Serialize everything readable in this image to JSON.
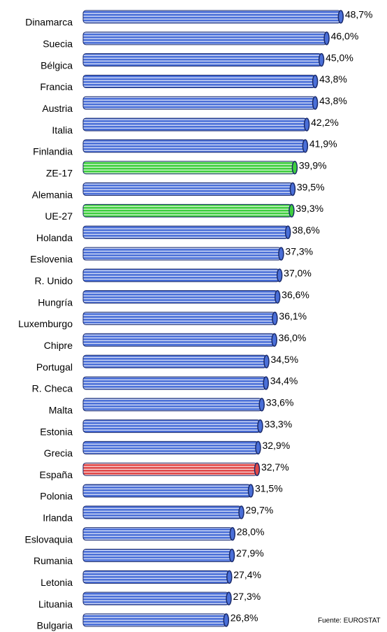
{
  "chart_data": {
    "type": "bar",
    "orientation": "horizontal",
    "categories": [
      "Dinamarca",
      "Suecia",
      "Bélgica",
      "Francia",
      "Austria",
      "Italia",
      "Finlandia",
      "ZE-17",
      "Alemania",
      "UE-27",
      "Holanda",
      "Eslovenia",
      "R. Unido",
      "Hungría",
      "Luxemburgo",
      "Chipre",
      "Portugal",
      "R. Checa",
      "Malta",
      "Estonia",
      "Grecia",
      "España",
      "Polonia",
      "Irlanda",
      "Eslovaquia",
      "Rumania",
      "Letonia",
      "Lituania",
      "Bulgaria"
    ],
    "values": [
      48.7,
      46.0,
      45.0,
      43.8,
      43.8,
      42.2,
      41.9,
      39.9,
      39.5,
      39.3,
      38.6,
      37.3,
      37.0,
      36.6,
      36.1,
      36.0,
      34.5,
      34.4,
      33.6,
      33.3,
      32.9,
      32.7,
      31.5,
      29.7,
      28.0,
      27.9,
      27.4,
      27.3,
      26.8
    ],
    "value_labels": [
      "48,7%",
      "46,0%",
      "45,0%",
      "43,8%",
      "43,8%",
      "42,2%",
      "41,9%",
      "39,9%",
      "39,5%",
      "39,3%",
      "38,6%",
      "37,3%",
      "37,0%",
      "36,6%",
      "36,1%",
      "36,0%",
      "34,5%",
      "34,4%",
      "33,6%",
      "33,3%",
      "32,9%",
      "32,7%",
      "31,5%",
      "29,7%",
      "28,0%",
      "27,9%",
      "27,4%",
      "27,3%",
      "26,8%"
    ],
    "colors": [
      "#4a6fd8",
      "#4a6fd8",
      "#4a6fd8",
      "#4a6fd8",
      "#4a6fd8",
      "#4a6fd8",
      "#4a6fd8",
      "#3fcf3f",
      "#4a6fd8",
      "#3fcf3f",
      "#4a6fd8",
      "#4a6fd8",
      "#4a6fd8",
      "#4a6fd8",
      "#4a6fd8",
      "#4a6fd8",
      "#4a6fd8",
      "#4a6fd8",
      "#4a6fd8",
      "#4a6fd8",
      "#4a6fd8",
      "#e04848",
      "#4a6fd8",
      "#4a6fd8",
      "#4a6fd8",
      "#4a6fd8",
      "#4a6fd8",
      "#4a6fd8",
      "#4a6fd8"
    ],
    "xlim": [
      0,
      57
    ],
    "source": "Fuente: EUROSTAT"
  }
}
